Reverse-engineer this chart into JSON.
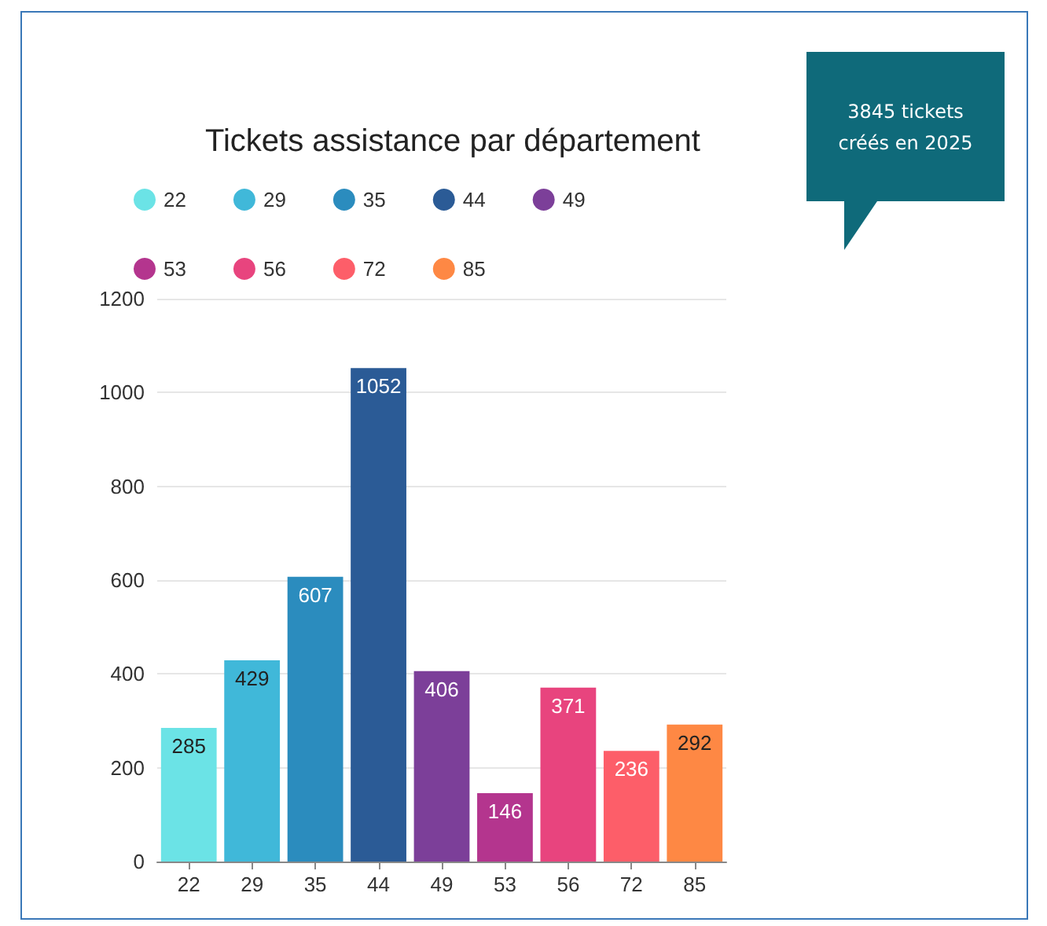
{
  "chart_data": {
    "type": "bar",
    "title": "Tickets assistance par département",
    "categories": [
      "22",
      "29",
      "35",
      "44",
      "49",
      "53",
      "56",
      "72",
      "85"
    ],
    "series": [
      {
        "name": "22",
        "color": "#6be3e6",
        "values": [
          285,
          null,
          null,
          null,
          null,
          null,
          null,
          null,
          null
        ]
      },
      {
        "name": "29",
        "color": "#40b8d9",
        "values": [
          null,
          429,
          null,
          null,
          null,
          null,
          null,
          null,
          null
        ]
      },
      {
        "name": "35",
        "color": "#2b8cbe",
        "values": [
          null,
          null,
          607,
          null,
          null,
          null,
          null,
          null,
          null
        ]
      },
      {
        "name": "44",
        "color": "#2b5b96",
        "values": [
          null,
          null,
          null,
          1052,
          null,
          null,
          null,
          null,
          null
        ]
      },
      {
        "name": "49",
        "color": "#7c3f99",
        "values": [
          null,
          null,
          null,
          null,
          406,
          null,
          null,
          null,
          null
        ]
      },
      {
        "name": "53",
        "color": "#b4358e",
        "values": [
          null,
          null,
          null,
          null,
          null,
          146,
          null,
          null,
          null
        ]
      },
      {
        "name": "56",
        "color": "#e8447e",
        "values": [
          null,
          null,
          null,
          null,
          null,
          null,
          371,
          null,
          null
        ]
      },
      {
        "name": "72",
        "color": "#fd5e69",
        "values": [
          null,
          null,
          null,
          null,
          null,
          null,
          null,
          236,
          null
        ]
      },
      {
        "name": "85",
        "color": "#fe8844",
        "values": [
          null,
          null,
          null,
          null,
          null,
          null,
          null,
          null,
          292
        ]
      }
    ],
    "stacked": true,
    "ylim": [
      0,
      1200
    ],
    "yticks": [
      0,
      200,
      400,
      600,
      800,
      1000,
      1200
    ],
    "grid": "y",
    "legend": "top",
    "data_labels": true,
    "annotations": [
      "3845 tickets créés en 2025"
    ]
  }
}
